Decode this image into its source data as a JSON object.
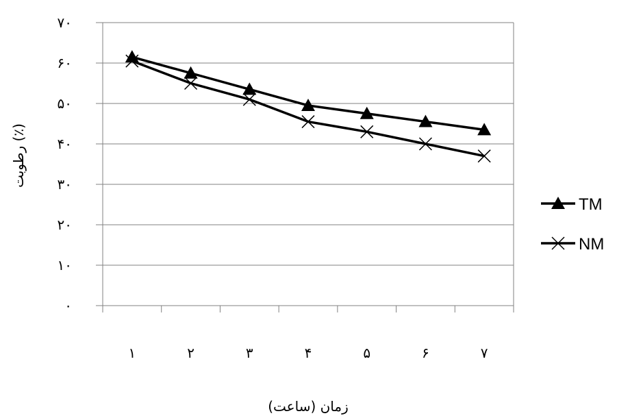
{
  "chart_data": {
    "type": "line",
    "categories": [
      "۱",
      "۲",
      "۳",
      "۴",
      "۵",
      "۶",
      "۷"
    ],
    "y_tick_labels": [
      "۰",
      "۱۰",
      "۲۰",
      "۳۰",
      "۴۰",
      "۵۰",
      "۶۰",
      "۷۰"
    ],
    "ylim": [
      0,
      70
    ],
    "y_major_unit": 10,
    "grid": "horizontal",
    "xlabel": "زمان (ساعت)",
    "ylabel": "رطوبت (٪)",
    "legend_position": "right",
    "series": [
      {
        "name": "TM",
        "marker": "triangle",
        "color": "#000000",
        "values": [
          61.5,
          57.5,
          53.5,
          49.5,
          47.5,
          45.5,
          43.5
        ]
      },
      {
        "name": "NM",
        "marker": "x",
        "color": "#000000",
        "values": [
          60.5,
          55.0,
          51.0,
          45.5,
          43.0,
          40.0,
          37.0
        ]
      }
    ]
  }
}
